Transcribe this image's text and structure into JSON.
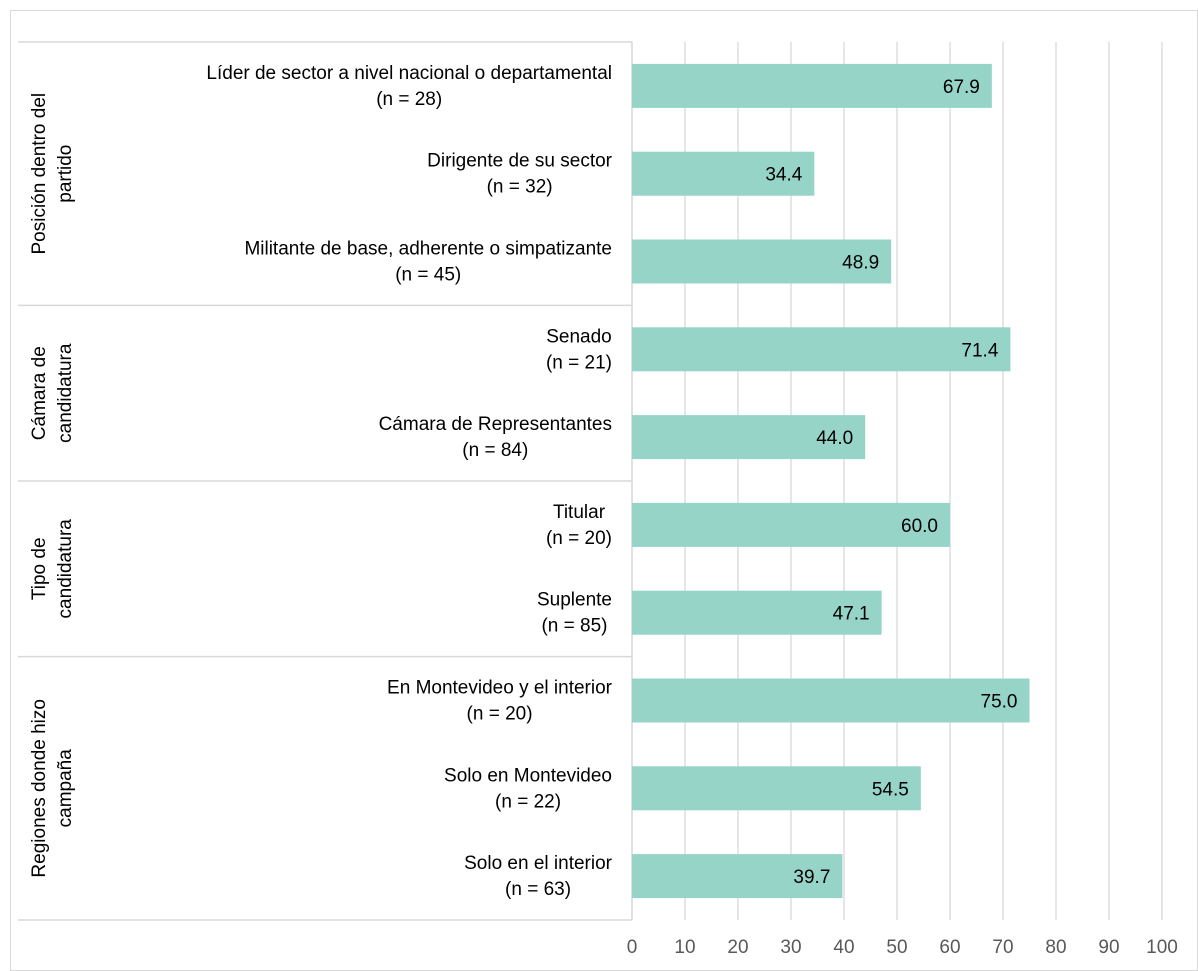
{
  "chart_data": {
    "type": "bar",
    "orientation": "horizontal",
    "color": "#96d4c8",
    "grid": true,
    "xlim": [
      0,
      100
    ],
    "xticks": [
      0,
      10,
      20,
      30,
      40,
      50,
      60,
      70,
      80,
      90,
      100
    ],
    "groups": [
      {
        "label": [
          "Posición dentro del",
          "partido"
        ],
        "items": [
          {
            "label": [
              "Líder de sector a nivel nacional o departamental",
              "(n = 28)"
            ],
            "value": 67.9,
            "value_label": "67.9"
          },
          {
            "label": [
              "Dirigente de su sector",
              "(n = 32)"
            ],
            "value": 34.4,
            "value_label": "34.4"
          },
          {
            "label": [
              "Militante de base, adherente o simpatizante",
              "(n = 45)"
            ],
            "value": 48.9,
            "value_label": "48.9"
          }
        ]
      },
      {
        "label": [
          "Cámara de",
          "candidatura"
        ],
        "items": [
          {
            "label": [
              "Senado ",
              "(n = 21)"
            ],
            "value": 71.4,
            "value_label": "71.4"
          },
          {
            "label": [
              "Cámara de Representantes",
              "(n = 84)"
            ],
            "value": 44,
            "value_label": "44.0"
          }
        ]
      },
      {
        "label": [
          "Tipo de",
          "candidatura"
        ],
        "items": [
          {
            "label": [
              "Titular ",
              "(n = 20)"
            ],
            "value": 60,
            "value_label": "60.0"
          },
          {
            "label": [
              "Suplente",
              "(n = 85)"
            ],
            "value": 47.1,
            "value_label": "47.1"
          }
        ]
      },
      {
        "label": [
          "Regiones donde hizo",
          "campaña"
        ],
        "items": [
          {
            "label": [
              "En Montevideo y el interior",
              "(n = 20)"
            ],
            "value": 75,
            "value_label": "75.0"
          },
          {
            "label": [
              "Solo en Montevideo",
              "(n = 22)"
            ],
            "value": 54.5,
            "value_label": "54.5"
          },
          {
            "label": [
              "Solo en el interior",
              "(n = 63)"
            ],
            "value": 39.7,
            "value_label": "39.7"
          }
        ]
      }
    ]
  }
}
